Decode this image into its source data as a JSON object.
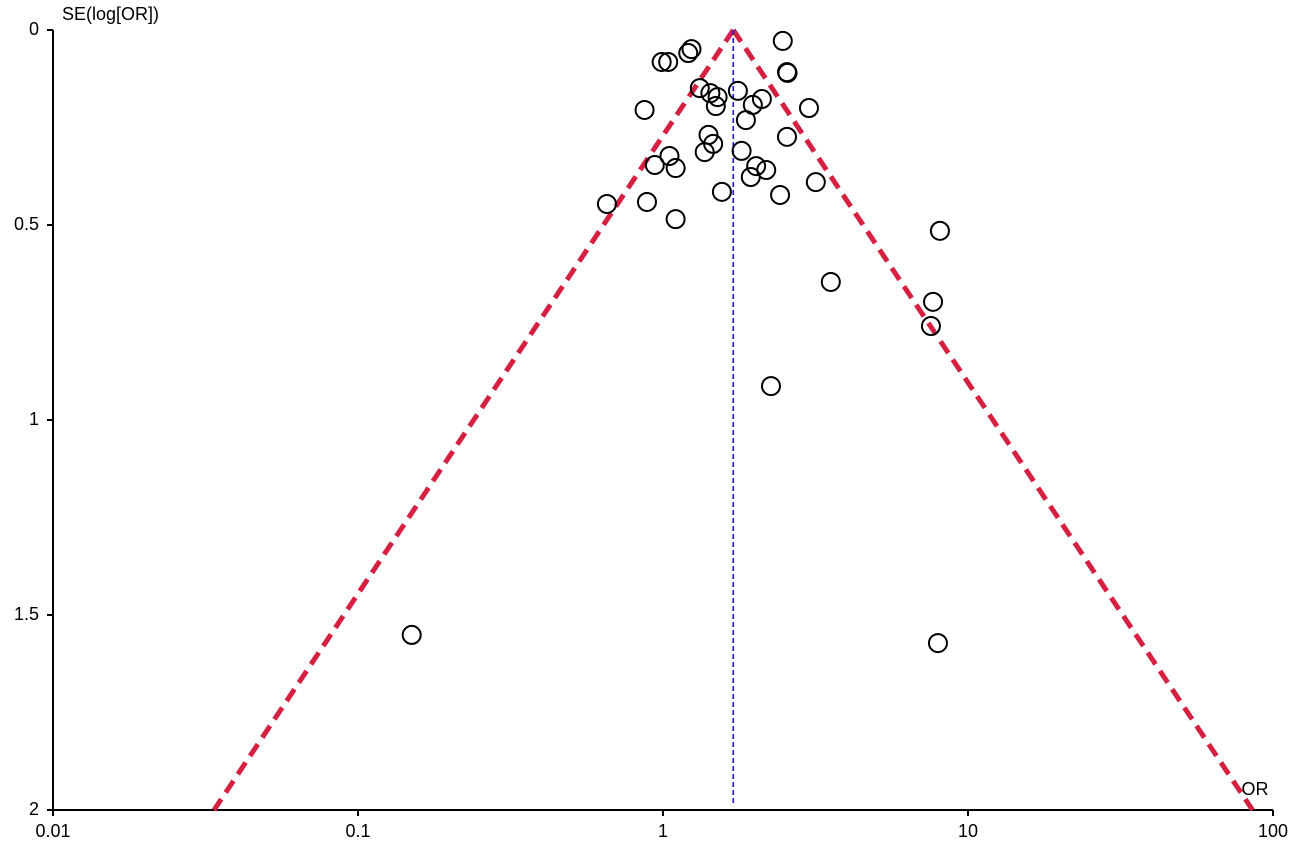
{
  "chart_data": {
    "type": "scatter",
    "x_label": "OR",
    "y_label": "SE(log[OR])",
    "x_log": true,
    "y_inverted": true,
    "xlim": [
      0.01,
      100
    ],
    "ylim": [
      0,
      2
    ],
    "xticks": [
      0.01,
      0.1,
      1,
      10,
      100
    ],
    "yticks": [
      0,
      0.5,
      1,
      1.5,
      2
    ],
    "reference_x": 1.7,
    "reference_color": "#1a1ae6",
    "funnel_color": "#d62041",
    "marker_color": "#000000",
    "x": [
      2.47,
      1.24,
      1.21,
      0.99,
      1.04,
      2.55,
      2.56,
      1.32,
      1.43,
      1.76,
      2.11,
      1.51,
      1.49,
      1.97,
      0.87,
      3.01,
      1.87,
      1.41,
      2.55,
      1.46,
      1.37,
      1.81,
      1.05,
      0.94,
      2.02,
      1.1,
      2.18,
      1.94,
      3.17,
      1.56,
      2.42,
      0.655,
      0.886,
      1.1,
      8.09,
      3.55,
      7.68,
      7.56,
      2.26,
      0.15,
      7.97
    ],
    "y": [
      0.028,
      0.049,
      0.059,
      0.082,
      0.082,
      0.108,
      0.11,
      0.149,
      0.162,
      0.156,
      0.177,
      0.172,
      0.195,
      0.192,
      0.205,
      0.2,
      0.231,
      0.269,
      0.274,
      0.292,
      0.313,
      0.31,
      0.323,
      0.346,
      0.349,
      0.354,
      0.359,
      0.377,
      0.39,
      0.415,
      0.423,
      0.446,
      0.441,
      0.485,
      0.515,
      0.646,
      0.697,
      0.759,
      0.913,
      1.551,
      1.572
    ]
  }
}
